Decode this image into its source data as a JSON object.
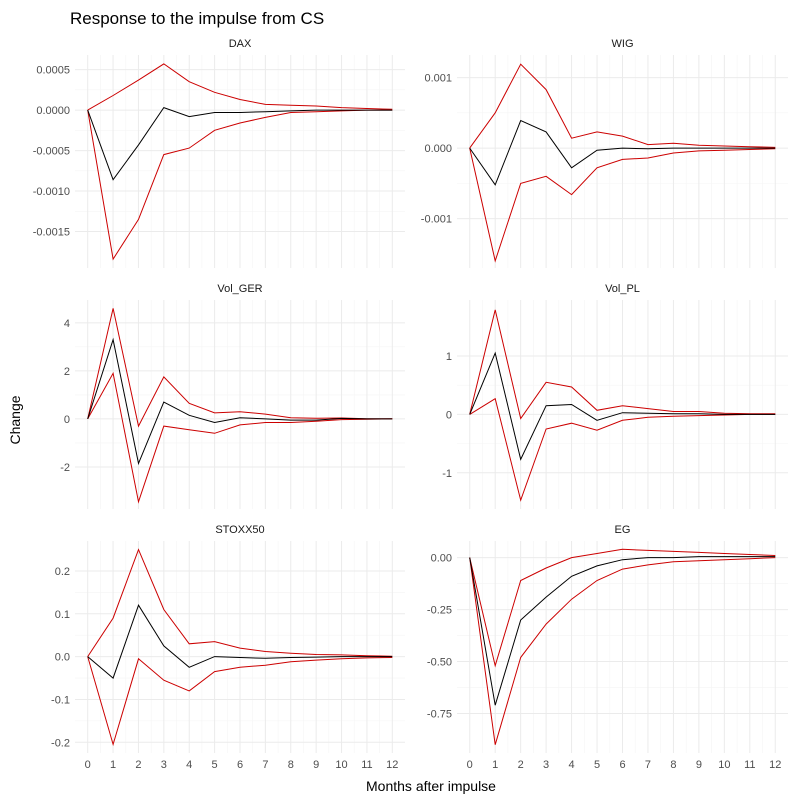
{
  "title": "Response to the impulse from CS",
  "xlabel": "Months after impulse",
  "ylabel": "Change",
  "colors": {
    "irf": "#000000",
    "bands": "#cc0000"
  },
  "chart_data": {
    "type": "line",
    "title": "Response to the impulse from CS",
    "xlabel": "Months after impulse",
    "ylabel": "Change",
    "x": [
      0,
      1,
      2,
      3,
      4,
      5,
      6,
      7,
      8,
      9,
      10,
      11,
      12
    ],
    "xlim": [
      -0.5,
      12.5
    ],
    "xticks": [
      "0",
      "1",
      "2",
      "3",
      "4",
      "5",
      "6",
      "7",
      "8",
      "9",
      "10",
      "11",
      "12"
    ],
    "grid": true,
    "panels": [
      {
        "strip": "DAX",
        "ylim": [
          -0.00195,
          0.00068
        ],
        "yticks": [
          -0.0015,
          -0.001,
          -0.0005,
          0,
          0.0005
        ],
        "ytick_labels": [
          "-0.0015",
          "-0.0010",
          "-0.0005",
          "0.0000",
          "0.0005"
        ],
        "irf": [
          0,
          -0.00086,
          -0.00043,
          3e-05,
          -8e-05,
          -3e-05,
          -3e-05,
          -2e-05,
          -1e-05,
          0,
          0,
          0,
          0
        ],
        "upper": [
          0,
          0.00018,
          0.00037,
          0.00057,
          0.00035,
          0.00022,
          0.00013,
          7e-05,
          6e-05,
          5e-05,
          3e-05,
          2e-05,
          1e-05
        ],
        "lower": [
          0,
          -0.00184,
          -0.00135,
          -0.00055,
          -0.00047,
          -0.00025,
          -0.00016,
          -9e-05,
          -3e-05,
          -2e-05,
          -1e-05,
          0,
          0
        ]
      },
      {
        "strip": "WIG",
        "ylim": [
          -0.0017,
          0.00132
        ],
        "yticks": [
          -0.001,
          0,
          0.001
        ],
        "ytick_labels": [
          "-0.001",
          "0.000",
          "0.001"
        ],
        "irf": [
          0,
          -0.00052,
          0.00039,
          0.00023,
          -0.00028,
          -3e-05,
          0,
          -1e-05,
          0,
          0,
          0,
          0,
          0
        ],
        "upper": [
          0,
          0.0005,
          0.00119,
          0.00083,
          0.00014,
          0.00023,
          0.00017,
          5e-05,
          7e-05,
          4e-05,
          3e-05,
          2e-05,
          1e-05
        ],
        "lower": [
          0,
          -0.0016,
          -0.0005,
          -0.0004,
          -0.00066,
          -0.00028,
          -0.00016,
          -0.00014,
          -7e-05,
          -4e-05,
          -3e-05,
          -2e-05,
          -1e-05
        ]
      },
      {
        "strip": "Vol_GER",
        "ylim": [
          -3.75,
          4.95
        ],
        "yticks": [
          -2,
          0,
          2,
          4
        ],
        "ytick_labels": [
          "-2",
          "0",
          "2",
          "4"
        ],
        "irf": [
          0,
          3.3,
          -1.85,
          0.7,
          0.15,
          -0.15,
          0.05,
          0,
          -0.05,
          -0.05,
          0.02,
          0,
          0
        ],
        "upper": [
          0,
          4.6,
          -0.3,
          1.75,
          0.65,
          0.25,
          0.3,
          0.2,
          0.05,
          0.03,
          0.04,
          0.01,
          0.01
        ],
        "lower": [
          0,
          1.9,
          -3.45,
          -0.3,
          -0.45,
          -0.6,
          -0.25,
          -0.15,
          -0.15,
          -0.1,
          -0.03,
          -0.01,
          0
        ]
      },
      {
        "strip": "Vol_PL",
        "ylim": [
          -1.62,
          1.96
        ],
        "yticks": [
          -1,
          0,
          1
        ],
        "ytick_labels": [
          "-1",
          "0",
          "1"
        ],
        "irf": [
          0,
          1.05,
          -0.77,
          0.15,
          0.17,
          -0.1,
          0.03,
          0.02,
          0.01,
          0.01,
          0,
          0,
          0
        ],
        "upper": [
          0,
          1.79,
          -0.07,
          0.55,
          0.47,
          0.07,
          0.15,
          0.1,
          0.05,
          0.05,
          0.02,
          0.01,
          0.01
        ],
        "lower": [
          0,
          0.27,
          -1.47,
          -0.25,
          -0.15,
          -0.27,
          -0.1,
          -0.05,
          -0.03,
          -0.02,
          -0.01,
          0,
          0
        ]
      },
      {
        "strip": "STOXX50",
        "ylim": [
          -0.225,
          0.27
        ],
        "yticks": [
          -0.2,
          -0.1,
          0,
          0.1,
          0.2
        ],
        "ytick_labels": [
          "-0.2",
          "-0.1",
          "0.0",
          "0.1",
          "0.2"
        ],
        "irf": [
          0,
          -0.05,
          0.12,
          0.025,
          -0.025,
          0,
          -0.002,
          -0.004,
          -0.002,
          -0.001,
          0,
          0,
          0
        ],
        "upper": [
          0,
          0.09,
          0.25,
          0.11,
          0.03,
          0.035,
          0.02,
          0.012,
          0.008,
          0.005,
          0.004,
          0.002,
          0.001
        ],
        "lower": [
          0,
          -0.205,
          -0.005,
          -0.055,
          -0.08,
          -0.035,
          -0.025,
          -0.02,
          -0.012,
          -0.008,
          -0.005,
          -0.003,
          -0.002
        ]
      },
      {
        "strip": "EG",
        "ylim": [
          -0.94,
          0.08
        ],
        "yticks": [
          -0.75,
          -0.5,
          -0.25,
          0
        ],
        "ytick_labels": [
          "-0.75",
          "-0.50",
          "-0.25",
          "0.00"
        ],
        "irf": [
          0,
          -0.71,
          -0.3,
          -0.19,
          -0.09,
          -0.04,
          -0.01,
          0,
          0,
          0.005,
          0.005,
          0.005,
          0.005
        ],
        "upper": [
          0,
          -0.52,
          -0.11,
          -0.05,
          0,
          0.02,
          0.04,
          0.035,
          0.03,
          0.025,
          0.02,
          0.015,
          0.01
        ],
        "lower": [
          0,
          -0.9,
          -0.48,
          -0.32,
          -0.2,
          -0.11,
          -0.055,
          -0.035,
          -0.02,
          -0.015,
          -0.01,
          -0.005,
          0
        ]
      }
    ]
  }
}
